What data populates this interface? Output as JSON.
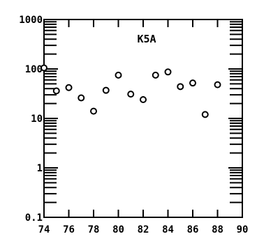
{
  "chart_data": {
    "type": "scatter",
    "title": "K5A",
    "xlabel": "",
    "ylabel": "",
    "y_scale": "log",
    "xlim": [
      74,
      90
    ],
    "ylim": [
      0.1,
      1000
    ],
    "grid": false,
    "marker": "open-circle",
    "x_ticks": [
      74,
      76,
      78,
      80,
      82,
      84,
      86,
      88,
      90
    ],
    "x_tick_labels": [
      "74",
      "76",
      "78",
      "80",
      "82",
      "84",
      "86",
      "88",
      "90"
    ],
    "y_ticks": [
      0.1,
      1,
      10,
      100,
      1000
    ],
    "y_tick_labels": [
      "0.1",
      "1",
      "10",
      "100",
      "1000"
    ],
    "x": [
      74,
      75,
      76,
      77,
      78,
      79,
      80,
      81,
      82,
      83,
      84,
      85,
      86,
      87,
      88
    ],
    "y": [
      105,
      36,
      42,
      26,
      14,
      37,
      75,
      31,
      24,
      75,
      87,
      44,
      52,
      12,
      48
    ],
    "colors": {
      "ink": "#000000",
      "background": "#ffffff"
    }
  }
}
